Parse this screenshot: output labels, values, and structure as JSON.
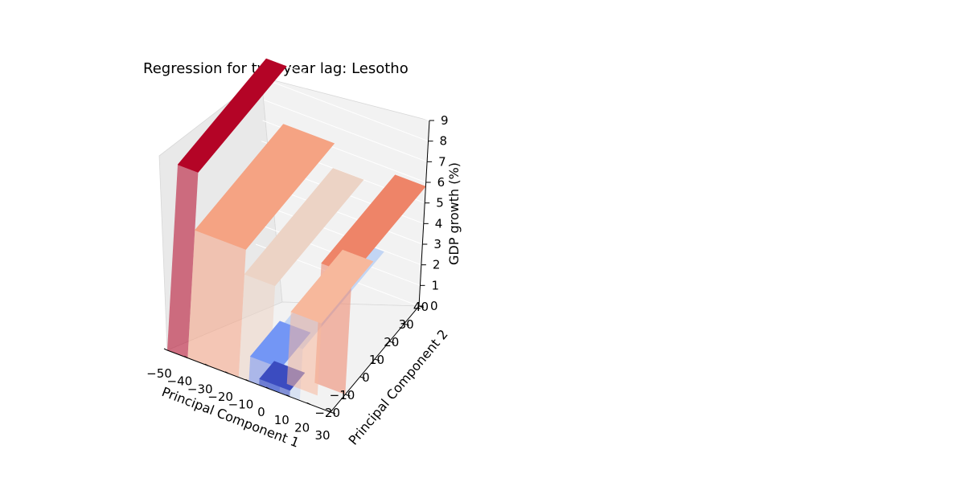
{
  "chart_data": {
    "type": "surface3d",
    "title": "Regression for two-year lag: Lesotho",
    "xlabel": "Principal Component 1",
    "ylabel": "Principal Component 2",
    "zlabel": "GDP growth (%)",
    "xlim": [
      -50,
      30
    ],
    "ylim": [
      -20,
      40
    ],
    "zlim": [
      0,
      9
    ],
    "x_ticks": [
      "−50",
      "−40",
      "−30",
      "−20",
      "−10",
      "0",
      "10",
      "20",
      "30"
    ],
    "y_ticks": [
      "−20",
      "−10",
      "0",
      "10",
      "20",
      "30",
      "40"
    ],
    "z_ticks": [
      "0",
      "1",
      "2",
      "3",
      "4",
      "5",
      "6",
      "7",
      "8",
      "9"
    ],
    "colormap": "coolwarm",
    "pane_color": "#f2f2f2",
    "grid": true,
    "surface_patches": [
      {
        "x": [
          -50,
          -40
        ],
        "y": [
          -20,
          40
        ],
        "z": 9.0,
        "color": "#b40426"
      },
      {
        "x": [
          -40,
          -15
        ],
        "y": [
          -20,
          40
        ],
        "z": 6.2,
        "color": "#f5a383"
      },
      {
        "x": [
          -15,
          0
        ],
        "y": [
          -20,
          40
        ],
        "z": 5.0,
        "color": "#ecd3c5"
      },
      {
        "x": [
          0,
          15
        ],
        "y": [
          -20,
          35
        ],
        "z": 2.5,
        "color": "#c2d5f4"
      },
      {
        "x": [
          15,
          30
        ],
        "y": [
          -10,
          40
        ],
        "z": 5.8,
        "color": "#ee8468"
      },
      {
        "x": [
          -10,
          5
        ],
        "y": [
          -20,
          0
        ],
        "z": 1.2,
        "color": "#7396f5"
      },
      {
        "x": [
          -5,
          10
        ],
        "y": [
          -20,
          -10
        ],
        "z": 0.3,
        "color": "#3b4cc0"
      },
      {
        "x": [
          5,
          20
        ],
        "y": [
          -15,
          20
        ],
        "z": 3.5,
        "color": "#f7b89c"
      }
    ]
  }
}
